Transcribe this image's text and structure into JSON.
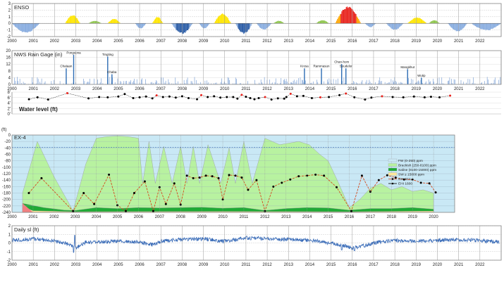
{
  "chart_data": [
    {
      "panel": "enso",
      "type": "bar",
      "title": "ENSO",
      "ylim": [
        -2,
        3
      ],
      "yticks": [
        "3",
        "2",
        "1",
        "0",
        "-1",
        "-2"
      ],
      "xlim": [
        2000,
        2023
      ],
      "colors": {
        "strong_el_nino": "#e8231d",
        "el_nino": "#ffe600",
        "weak_el_nino": "#ffa500",
        "neutral_warm": "#8fc64e",
        "la_nina": "#8aaee0",
        "strong_la_nina": "#2e5fa8"
      },
      "events": [
        {
          "start": 2002.5,
          "end": 2003.2,
          "peak": 1.3,
          "class": "el_nino"
        },
        {
          "start": 2004.5,
          "end": 2005.1,
          "peak": 0.7,
          "class": "el_nino"
        },
        {
          "start": 2006.6,
          "end": 2007.1,
          "peak": 1.0,
          "class": "el_nino"
        },
        {
          "start": 2009.5,
          "end": 2010.3,
          "peak": 1.5,
          "class": "el_nino"
        },
        {
          "start": 2015.2,
          "end": 2016.4,
          "peak": 2.6,
          "class": "strong_el_nino"
        },
        {
          "start": 2018.6,
          "end": 2019.5,
          "peak": 0.9,
          "class": "el_nino"
        },
        {
          "start": 2003.6,
          "end": 2004.2,
          "peak": 0.4,
          "class": "neutral_warm"
        },
        {
          "start": 2012.3,
          "end": 2012.8,
          "peak": 0.4,
          "class": "neutral_warm"
        },
        {
          "start": 2014.3,
          "end": 2014.9,
          "peak": 0.5,
          "class": "neutral_warm"
        },
        {
          "start": 2019.6,
          "end": 2020.1,
          "peak": 0.5,
          "class": "neutral_warm"
        },
        {
          "start": 2000.0,
          "end": 2001.3,
          "peak": -1.5,
          "class": "la_nina"
        },
        {
          "start": 2005.8,
          "end": 2006.3,
          "peak": -0.8,
          "class": "la_nina"
        },
        {
          "start": 2007.5,
          "end": 2008.5,
          "peak": -1.6,
          "class": "strong_la_nina"
        },
        {
          "start": 2008.8,
          "end": 2009.3,
          "peak": -0.8,
          "class": "la_nina"
        },
        {
          "start": 2010.5,
          "end": 2011.3,
          "peak": -1.6,
          "class": "strong_la_nina"
        },
        {
          "start": 2011.5,
          "end": 2012.2,
          "peak": -1.0,
          "class": "la_nina"
        },
        {
          "start": 2016.6,
          "end": 2017.1,
          "peak": -0.6,
          "class": "la_nina"
        },
        {
          "start": 2017.6,
          "end": 2018.4,
          "peak": -1.0,
          "class": "la_nina"
        },
        {
          "start": 2020.5,
          "end": 2021.4,
          "peak": -1.3,
          "class": "la_nina"
        },
        {
          "start": 2021.6,
          "end": 2023.0,
          "peak": -1.1,
          "class": "la_nina"
        }
      ]
    },
    {
      "panel": "rain",
      "type": "bar",
      "title": "NWS Rain Gage (in)",
      "ylim": [
        0,
        20
      ],
      "yticks": [
        "20",
        "16",
        "12",
        "8",
        "4",
        "0"
      ],
      "xlim": [
        2000,
        2023
      ],
      "xticks": [
        "2000",
        "2001",
        "2002",
        "2003",
        "2004",
        "2005",
        "2006",
        "2007",
        "2008",
        "2009",
        "2010",
        "2011",
        "2012",
        "2013",
        "2014",
        "2015",
        "2016",
        "2017",
        "2018",
        "2019",
        "2020",
        "2021",
        "2022"
      ],
      "bar_color": "#2e6db4",
      "storms": [
        {
          "x": 2002.55,
          "value": 9.5,
          "label": "Chataan"
        },
        {
          "x": 2002.9,
          "value": 17.5,
          "label": "Pongsona"
        },
        {
          "x": 2004.5,
          "value": 16.5,
          "label": "Tingting"
        },
        {
          "x": 2004.7,
          "value": 6.0,
          "label": "Chaba"
        },
        {
          "x": 2013.75,
          "value": 9.5,
          "label": "Krosa"
        },
        {
          "x": 2014.55,
          "value": 9.5,
          "label": "Rammasun"
        },
        {
          "x": 2015.5,
          "value": 12.0,
          "label": "Chan-hom"
        },
        {
          "x": 2015.7,
          "value": 9.5,
          "label": "Soudelor"
        },
        {
          "x": 2018.6,
          "value": 9.0,
          "label": "Mangkhut"
        },
        {
          "x": 2019.25,
          "value": 4.0,
          "label": "Wutip"
        }
      ]
    },
    {
      "panel": "water_level",
      "type": "line",
      "title": "Water level (ft)",
      "ylim": [
        0,
        8
      ],
      "yticks": [
        "8'",
        "6'",
        "4'",
        "2'",
        "0'"
      ],
      "xlim": [
        2000,
        2023
      ],
      "line_color": "#000000",
      "highlight_color": "#e8231d",
      "points": [
        [
          2000.8,
          5.4,
          0
        ],
        [
          2001.2,
          6.1,
          0
        ],
        [
          2001.7,
          5.3,
          0
        ],
        [
          2002.6,
          7.6,
          1
        ],
        [
          2003.6,
          5.7,
          0
        ],
        [
          2004.1,
          6.2,
          0
        ],
        [
          2004.5,
          6.1,
          0
        ],
        [
          2005.0,
          6.4,
          0
        ],
        [
          2005.3,
          7.3,
          0
        ],
        [
          2005.7,
          5.8,
          0
        ],
        [
          2006.0,
          6.1,
          0
        ],
        [
          2006.3,
          6.4,
          0
        ],
        [
          2006.6,
          5.7,
          0
        ],
        [
          2006.8,
          6.8,
          1
        ],
        [
          2007.1,
          6.2,
          0
        ],
        [
          2007.4,
          6.4,
          0
        ],
        [
          2007.7,
          6.0,
          0
        ],
        [
          2008.0,
          6.5,
          0
        ],
        [
          2008.3,
          5.8,
          0
        ],
        [
          2008.7,
          5.4,
          0
        ],
        [
          2008.9,
          6.9,
          1
        ],
        [
          2009.2,
          6.2,
          0
        ],
        [
          2009.5,
          6.5,
          0
        ],
        [
          2009.8,
          6.0,
          0
        ],
        [
          2010.1,
          6.2,
          0
        ],
        [
          2010.4,
          6.2,
          0
        ],
        [
          2010.6,
          5.6,
          0
        ],
        [
          2010.8,
          7.0,
          1
        ],
        [
          2011.0,
          6.3,
          0
        ],
        [
          2011.2,
          5.8,
          0
        ],
        [
          2011.4,
          5.4,
          0
        ],
        [
          2011.6,
          5.8,
          0
        ],
        [
          2011.9,
          6.2,
          1
        ],
        [
          2012.2,
          5.3,
          0
        ],
        [
          2012.5,
          5.7,
          0
        ],
        [
          2012.8,
          5.6,
          0
        ],
        [
          2012.9,
          6.2,
          0
        ],
        [
          2013.1,
          7.4,
          1
        ],
        [
          2013.4,
          6.5,
          0
        ],
        [
          2013.7,
          6.6,
          0
        ],
        [
          2014.1,
          5.8,
          0
        ],
        [
          2014.5,
          6.1,
          1
        ],
        [
          2014.9,
          6.2,
          0
        ],
        [
          2015.4,
          6.9,
          0
        ],
        [
          2015.7,
          7.5,
          1
        ],
        [
          2016.1,
          6.1,
          0
        ],
        [
          2016.6,
          5.3,
          0
        ],
        [
          2016.9,
          6.0,
          0
        ],
        [
          2017.4,
          6.5,
          1
        ],
        [
          2017.9,
          6.2,
          0
        ],
        [
          2018.4,
          6.1,
          0
        ],
        [
          2018.9,
          6.4,
          0
        ],
        [
          2019.4,
          6.1,
          0
        ],
        [
          2019.7,
          6.3,
          0
        ],
        [
          2020.1,
          6.1,
          0
        ],
        [
          2020.6,
          6.7,
          1
        ]
      ]
    },
    {
      "panel": "ex4",
      "type": "area",
      "title": "EX-4",
      "ylabel": "(ft)",
      "ylim": [
        -240,
        0
      ],
      "yticks": [
        "0",
        "-20",
        "-40",
        "-60",
        "-80",
        "-100",
        "-120",
        "-140",
        "-160",
        "-180",
        "-200",
        "-220",
        "-240"
      ],
      "xlim": [
        2000,
        2021
      ],
      "xticks": [
        "2000",
        "2001",
        "2002",
        "2003",
        "2004",
        "2005",
        "2006",
        "2007",
        "2008",
        "2009",
        "2010",
        "2011",
        "2012",
        "2013",
        "2014",
        "2015",
        "2016",
        "2017",
        "2018",
        "2019",
        "2020"
      ],
      "reference_line": -38,
      "colors": {
        "fw": "#c9e8f5",
        "brackish": "#b8f2a0",
        "saline": "#1faa35",
        "sw": "#ffe89a",
        "gh": "#d44a1e",
        "ehw": "#000000"
      },
      "legend": [
        {
          "label": "FW (0-250) ppm",
          "swatch": "fw"
        },
        {
          "label": "Brackish (250-8100) ppm",
          "swatch": "brackish"
        },
        {
          "label": "Saline (8100-15000) ppm",
          "swatch": "saline"
        },
        {
          "label": "SW ≥ 15000 ppm",
          "swatch": "sw"
        },
        {
          "label": "GH 40:1",
          "swatch": "gh"
        },
        {
          "label": "EHI 1600",
          "swatch": "ehw"
        }
      ],
      "brackish_top": [
        [
          2000.5,
          -180
        ],
        [
          2001.2,
          -20
        ],
        [
          2002.0,
          -130
        ],
        [
          2002.9,
          -235
        ],
        [
          2003.5,
          -90
        ],
        [
          2004.0,
          -10
        ],
        [
          2004.5,
          -5
        ],
        [
          2005.0,
          -3
        ],
        [
          2005.5,
          -5
        ],
        [
          2006.0,
          -10
        ],
        [
          2006.2,
          -150
        ],
        [
          2006.5,
          -20
        ],
        [
          2006.8,
          -150
        ],
        [
          2007.2,
          -35
        ],
        [
          2007.6,
          -150
        ],
        [
          2008.0,
          -35
        ],
        [
          2008.3,
          -150
        ],
        [
          2008.6,
          -35
        ],
        [
          2008.9,
          -150
        ],
        [
          2009.3,
          -30
        ],
        [
          2009.9,
          -150
        ],
        [
          2010.3,
          -40
        ],
        [
          2010.6,
          -150
        ],
        [
          2011.0,
          -20
        ],
        [
          2011.4,
          -150
        ],
        [
          2012.0,
          -10
        ],
        [
          2012.7,
          -30
        ],
        [
          2013.6,
          -20
        ],
        [
          2014.1,
          -30
        ],
        [
          2014.6,
          -60
        ],
        [
          2015.0,
          -80
        ],
        [
          2015.5,
          -150
        ],
        [
          2016.0,
          -225
        ],
        [
          2016.5,
          -200
        ],
        [
          2017.0,
          -165
        ],
        [
          2017.5,
          -150
        ],
        [
          2018.0,
          -170
        ],
        [
          2018.5,
          -160
        ],
        [
          2019.0,
          -175
        ],
        [
          2019.5,
          -170
        ],
        [
          2020.0,
          -180
        ]
      ],
      "saline_top": [
        [
          2000.5,
          -212
        ],
        [
          2001.5,
          -225
        ],
        [
          2002.5,
          -233
        ],
        [
          2003.0,
          -234
        ],
        [
          2004.0,
          -225
        ],
        [
          2005.0,
          -228
        ],
        [
          2006.0,
          -225
        ],
        [
          2007.0,
          -226
        ],
        [
          2008.0,
          -225
        ],
        [
          2009.0,
          -224
        ],
        [
          2010.0,
          -227
        ],
        [
          2011.0,
          -225
        ],
        [
          2012.0,
          -234
        ],
        [
          2013.0,
          -228
        ],
        [
          2014.0,
          -225
        ],
        [
          2015.0,
          -226
        ],
        [
          2016.0,
          -233
        ],
        [
          2017.0,
          -228
        ],
        [
          2018.0,
          -228
        ],
        [
          2019.0,
          -225
        ],
        [
          2020.0,
          -230
        ]
      ],
      "sw_top": [
        [
          2000.5,
          -222
        ],
        [
          2001.0,
          -235
        ],
        [
          2003.0,
          -238
        ],
        [
          2010.0,
          -237
        ],
        [
          2016.0,
          -238
        ],
        [
          2020.0,
          -236
        ]
      ],
      "gh_points": [
        [
          2000.8,
          -180
        ],
        [
          2001.4,
          -134
        ],
        [
          2002.9,
          -236
        ],
        [
          2003.4,
          -180
        ],
        [
          2003.9,
          -214
        ],
        [
          2004.6,
          -123
        ],
        [
          2005.0,
          -218
        ],
        [
          2005.4,
          -236
        ],
        [
          2005.8,
          -180
        ],
        [
          2006.3,
          -144
        ],
        [
          2006.7,
          -236
        ],
        [
          2007.0,
          -162
        ],
        [
          2007.3,
          -214
        ],
        [
          2007.7,
          -150
        ],
        [
          2008.0,
          -216
        ],
        [
          2008.3,
          -126
        ],
        [
          2008.6,
          -134
        ],
        [
          2008.9,
          -132
        ],
        [
          2009.2,
          -126
        ],
        [
          2009.5,
          -128
        ],
        [
          2009.8,
          -134
        ],
        [
          2010.0,
          -200
        ],
        [
          2010.3,
          -124
        ],
        [
          2010.6,
          -126
        ],
        [
          2010.9,
          -132
        ],
        [
          2011.2,
          -170
        ],
        [
          2011.6,
          -140
        ],
        [
          2012.0,
          -236
        ],
        [
          2012.4,
          -160
        ],
        [
          2012.8,
          -148
        ],
        [
          2013.2,
          -138
        ],
        [
          2013.6,
          -128
        ],
        [
          2014.0,
          -126
        ],
        [
          2014.4,
          -123
        ],
        [
          2014.8,
          -126
        ],
        [
          2015.4,
          -162
        ],
        [
          2016.1,
          -236
        ],
        [
          2016.6,
          -126
        ],
        [
          2017.0,
          -176
        ],
        [
          2017.4,
          -140
        ],
        [
          2017.8,
          -125
        ],
        [
          2018.2,
          -132
        ],
        [
          2018.6,
          -138
        ],
        [
          2019.0,
          -138
        ],
        [
          2019.4,
          -148
        ],
        [
          2019.8,
          -150
        ],
        [
          2020.1,
          -178
        ]
      ]
    },
    {
      "panel": "daily_sl",
      "type": "line",
      "title": "Daily sl (ft)",
      "ylim": [
        -2,
        2
      ],
      "yticks": [
        "2",
        "1",
        "0",
        "-1",
        "-2"
      ],
      "xlim": [
        2000,
        2023
      ],
      "xticks": [
        "2000",
        "2001",
        "2002",
        "2003",
        "2004",
        "2005",
        "2006",
        "2007",
        "2008",
        "2009",
        "2010",
        "2011",
        "2012",
        "2013",
        "2014",
        "2015",
        "2016",
        "2017",
        "2018",
        "2019",
        "2020",
        "2021",
        "2022"
      ],
      "line_color": "#3a6cb8",
      "baseline": [
        [
          2000.0,
          0.3
        ],
        [
          2001.0,
          0.5
        ],
        [
          2002.0,
          0.2
        ],
        [
          2002.5,
          0.0
        ],
        [
          2003.0,
          -0.6
        ],
        [
          2003.5,
          0.1
        ],
        [
          2004.0,
          0.1
        ],
        [
          2005.0,
          0.2
        ],
        [
          2006.0,
          0.1
        ],
        [
          2006.6,
          -0.2
        ],
        [
          2007.0,
          0.2
        ],
        [
          2008.0,
          0.4
        ],
        [
          2009.0,
          0.5
        ],
        [
          2010.0,
          0.2
        ],
        [
          2010.7,
          0.5
        ],
        [
          2011.0,
          0.6
        ],
        [
          2012.0,
          0.5
        ],
        [
          2013.0,
          0.4
        ],
        [
          2014.0,
          0.3
        ],
        [
          2015.0,
          0.0
        ],
        [
          2015.6,
          -0.3
        ],
        [
          2016.0,
          -0.6
        ],
        [
          2016.6,
          -0.3
        ],
        [
          2017.0,
          0.0
        ],
        [
          2018.0,
          0.3
        ],
        [
          2019.0,
          0.2
        ],
        [
          2020.0,
          0.3
        ],
        [
          2021.0,
          0.4
        ],
        [
          2022.0,
          0.3
        ],
        [
          2022.9,
          0.1
        ]
      ],
      "spikes": [
        [
          2002.9,
          -1.1
        ],
        [
          2002.95,
          0.9
        ],
        [
          2015.5,
          -0.8
        ],
        [
          2016.1,
          -0.9
        ]
      ]
    }
  ]
}
